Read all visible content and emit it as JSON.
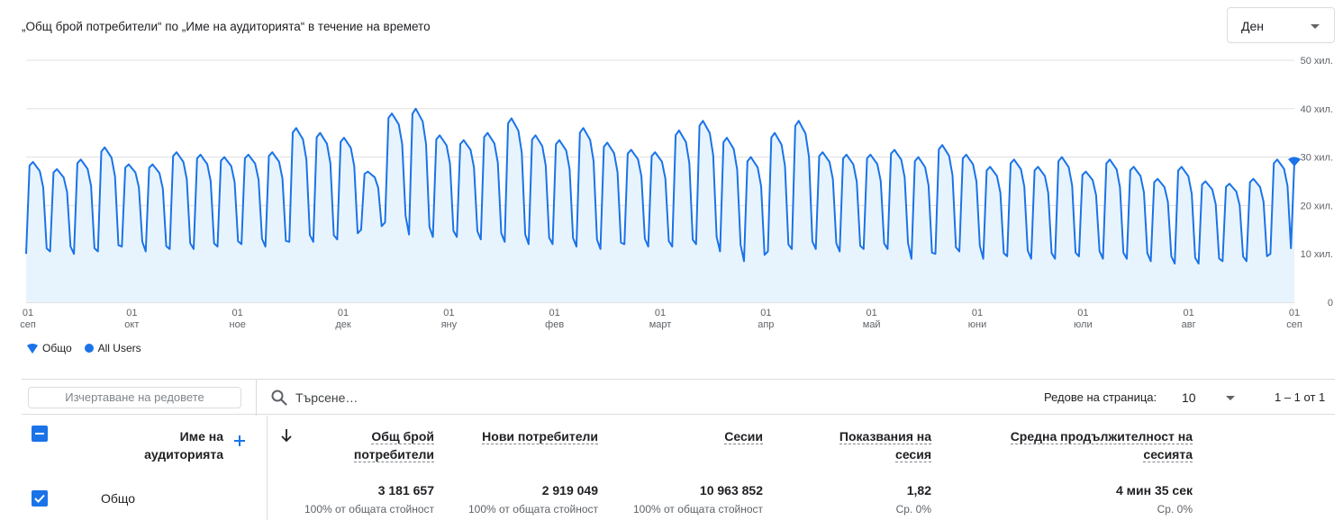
{
  "header": {
    "title": "„Общ брой потребители“ по „Име на аудиторията“ в течение на времето",
    "granularity": "Ден"
  },
  "colors": {
    "line": "#1a73e8",
    "area": "#e8f4fd",
    "grid": "#e0e0e0"
  },
  "chart_data": {
    "type": "area",
    "title": "„Общ брой потребители“ по „Име на аудиторията“ в течение на времето",
    "y_ticks": [
      "50 хил.",
      "40 хил.",
      "30 хил.",
      "20 хил.",
      "10 хил.",
      "0"
    ],
    "ylim": [
      0,
      50000
    ],
    "x_ticks": [
      {
        "day": "01",
        "month": "сеп"
      },
      {
        "day": "01",
        "month": "окт"
      },
      {
        "day": "01",
        "month": "ное"
      },
      {
        "day": "01",
        "month": "дек"
      },
      {
        "day": "01",
        "month": "яну"
      },
      {
        "day": "01",
        "month": "фев"
      },
      {
        "day": "01",
        "month": "март"
      },
      {
        "day": "01",
        "month": "апр"
      },
      {
        "day": "01",
        "month": "май"
      },
      {
        "day": "01",
        "month": "юни"
      },
      {
        "day": "01",
        "month": "юли"
      },
      {
        "day": "01",
        "month": "авг"
      },
      {
        "day": "01",
        "month": "сеп"
      }
    ],
    "grid": true,
    "series": [
      {
        "name": "Общо",
        "weekly_peaks": [
          29000,
          27500,
          29500,
          32000,
          28500,
          28500,
          31000,
          30500,
          30000,
          30500,
          31000,
          36000,
          35000,
          34000,
          27000,
          39000,
          40000,
          34500,
          33500,
          35000,
          38000,
          34500,
          33500,
          36000,
          33000,
          31500,
          31000,
          35500,
          37500,
          34000,
          30000,
          35000,
          37500,
          31000,
          30500,
          30500,
          31500,
          30000,
          32500,
          30500,
          28000,
          29500,
          28000,
          30000,
          27000,
          29500,
          28000,
          25500,
          28000,
          25000,
          24500,
          25500,
          29500
        ],
        "weekly_troughs": [
          10000,
          10500,
          10000,
          10500,
          11500,
          10500,
          11000,
          11000,
          11500,
          12000,
          11500,
          12500,
          12500,
          13000,
          15000,
          16500,
          14000,
          13500,
          13500,
          13000,
          12500,
          12000,
          12000,
          11500,
          11000,
          12000,
          11500,
          11500,
          12000,
          10500,
          8500,
          10500,
          11000,
          11000,
          10500,
          11000,
          11000,
          9000,
          10000,
          10500,
          9000,
          9500,
          9000,
          9000,
          9500,
          9000,
          9000,
          8500,
          8000,
          8000,
          8500,
          8500,
          10000
        ],
        "last_value": 29000
      }
    ],
    "legend": [
      {
        "label": "Общо",
        "marker": "pin-icon"
      },
      {
        "label": "All Users",
        "marker": "dot"
      }
    ]
  },
  "toolbar": {
    "plot_rows_label": "Изчертаване на редовете",
    "search_placeholder": "Търсене…",
    "rows_per_page_label": "Редове на страница:",
    "rows_per_page_value": "10",
    "pagination": "1 – 1 от 1"
  },
  "table": {
    "dimension_header_line1": "Име на",
    "dimension_header_line2": "аудиторията",
    "columns": [
      {
        "line1": "Общ брой",
        "line2": "потребители"
      },
      {
        "line1": "Нови потребители",
        "line2": ""
      },
      {
        "line1": "Сесии",
        "line2": ""
      },
      {
        "line1": "Показвания на",
        "line2": "сесия"
      },
      {
        "line1": "Средна продължителност на",
        "line2": "сесията"
      }
    ],
    "row": {
      "name": "Общо",
      "values": [
        "3 181 657",
        "2 919 049",
        "10 963 852",
        "1,82",
        "4 мин 35 сек"
      ],
      "subs": [
        "100% от общата стойност",
        "100% от общата стойност",
        "100% от общата стойност",
        "Ср. 0%",
        "Ср. 0%"
      ]
    }
  }
}
